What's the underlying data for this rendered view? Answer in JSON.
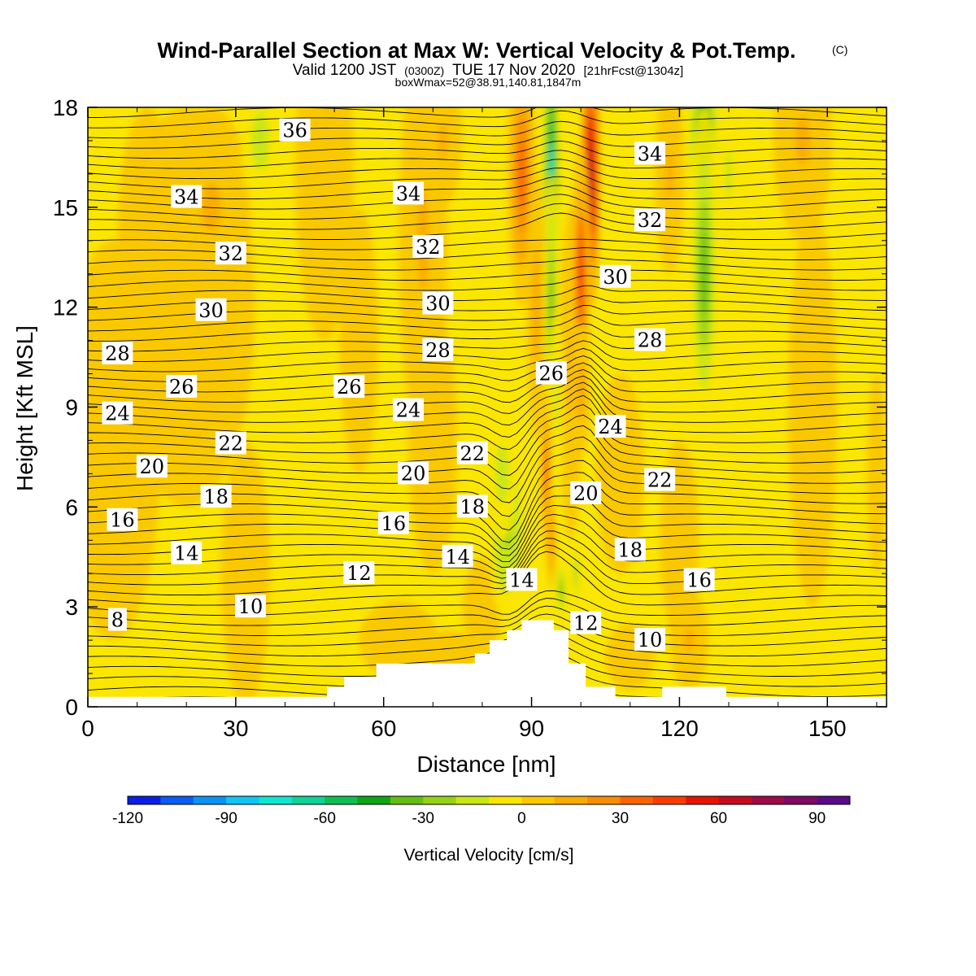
{
  "title": {
    "main": "Wind-Parallel Section at Max W: Vertical Velocity & Pot.Temp.",
    "copyright": "(C)",
    "valid_prefix": "Valid 1200 JST",
    "valid_utc": "(0300Z)",
    "valid_date": "TUE 17 Nov 2020",
    "forecast": "[21hrFcst@1304z]",
    "box_info": "boxWmax=52@38.91,140.81,1847m"
  },
  "chart_data": {
    "type": "heatmap",
    "xlabel": "Distance [nm]",
    "ylabel": "Height [Kft MSL]",
    "xlim": [
      0,
      162
    ],
    "ylim": [
      0,
      18
    ],
    "x_ticks": [
      "0",
      "30",
      "60",
      "90",
      "120",
      "150"
    ],
    "y_ticks": [
      "0",
      "3",
      "6",
      "9",
      "12",
      "15",
      "18"
    ],
    "colorbar": {
      "label": "Vertical Velocity [cm/s]",
      "range": [
        -120,
        100
      ],
      "step": 10,
      "tick_labels": [
        "-120",
        "-90",
        "-60",
        "-30",
        "0",
        "30",
        "60",
        "90"
      ],
      "colors": [
        "#0a1de6",
        "#0a5cf5",
        "#0a93f5",
        "#0fc5f5",
        "#0fe6d2",
        "#0fd296",
        "#0fbe50",
        "#0fa514",
        "#64be14",
        "#96d214",
        "#c8e614",
        "#fae600",
        "#fac800",
        "#faaa00",
        "#fa8c00",
        "#fa6400",
        "#fa3c00",
        "#e61400",
        "#c80a1e",
        "#a00a46",
        "#7d0a64",
        "#5a0a87"
      ]
    },
    "terrain_kft": [
      {
        "x": 0,
        "top": 0.3
      },
      {
        "x": 48.5,
        "top": 0.3
      },
      {
        "x": 48.5,
        "top": 0.6
      },
      {
        "x": 52,
        "top": 0.6
      },
      {
        "x": 52,
        "top": 0.9
      },
      {
        "x": 58.5,
        "top": 0.9
      },
      {
        "x": 58.5,
        "top": 1.3
      },
      {
        "x": 78.5,
        "top": 1.3
      },
      {
        "x": 78.5,
        "top": 1.6
      },
      {
        "x": 81.5,
        "top": 1.6
      },
      {
        "x": 81.5,
        "top": 2.0
      },
      {
        "x": 85,
        "top": 2.0
      },
      {
        "x": 85,
        "top": 2.3
      },
      {
        "x": 88,
        "top": 2.3
      },
      {
        "x": 88,
        "top": 2.6
      },
      {
        "x": 94.5,
        "top": 2.6
      },
      {
        "x": 94.5,
        "top": 2.3
      },
      {
        "x": 97.5,
        "top": 2.3
      },
      {
        "x": 97.5,
        "top": 1.3
      },
      {
        "x": 101,
        "top": 1.3
      },
      {
        "x": 101,
        "top": 0.6
      },
      {
        "x": 107,
        "top": 0.6
      },
      {
        "x": 107,
        "top": 0.3
      },
      {
        "x": 116.5,
        "top": 0.3
      },
      {
        "x": 116.5,
        "top": 0.6
      },
      {
        "x": 129.5,
        "top": 0.6
      },
      {
        "x": 129.5,
        "top": 0.3
      },
      {
        "x": 162,
        "top": 0.3
      }
    ],
    "pot_temp_labels": [
      {
        "text": "36",
        "x": 42,
        "y": 17.3
      },
      {
        "text": "34",
        "x": 20,
        "y": 15.3
      },
      {
        "text": "32",
        "x": 29,
        "y": 13.6
      },
      {
        "text": "30",
        "x": 25,
        "y": 11.9
      },
      {
        "text": "28",
        "x": 6,
        "y": 10.6
      },
      {
        "text": "26",
        "x": 19,
        "y": 9.6
      },
      {
        "text": "24",
        "x": 6,
        "y": 8.8
      },
      {
        "text": "22",
        "x": 29,
        "y": 7.9
      },
      {
        "text": "20",
        "x": 13,
        "y": 7.2
      },
      {
        "text": "18",
        "x": 26,
        "y": 6.3
      },
      {
        "text": "16",
        "x": 7,
        "y": 5.6
      },
      {
        "text": "14",
        "x": 20,
        "y": 4.6
      },
      {
        "text": "10",
        "x": 33,
        "y": 3.0
      },
      {
        "text": "8",
        "x": 6,
        "y": 2.6
      },
      {
        "text": "34",
        "x": 65,
        "y": 15.4
      },
      {
        "text": "32",
        "x": 69,
        "y": 13.8
      },
      {
        "text": "30",
        "x": 71,
        "y": 12.1
      },
      {
        "text": "28",
        "x": 71,
        "y": 10.7
      },
      {
        "text": "26",
        "x": 53,
        "y": 9.6
      },
      {
        "text": "24",
        "x": 65,
        "y": 8.9
      },
      {
        "text": "22",
        "x": 78,
        "y": 7.6
      },
      {
        "text": "20",
        "x": 66,
        "y": 7.0
      },
      {
        "text": "18",
        "x": 78,
        "y": 6.0
      },
      {
        "text": "16",
        "x": 62,
        "y": 5.5
      },
      {
        "text": "14",
        "x": 75,
        "y": 4.5
      },
      {
        "text": "12",
        "x": 55,
        "y": 4.0
      },
      {
        "text": "14",
        "x": 88,
        "y": 3.8
      },
      {
        "text": "26",
        "x": 94,
        "y": 10.0
      },
      {
        "text": "24",
        "x": 106,
        "y": 8.4
      },
      {
        "text": "20",
        "x": 101,
        "y": 6.4
      },
      {
        "text": "34",
        "x": 114,
        "y": 16.6
      },
      {
        "text": "32",
        "x": 114,
        "y": 14.6
      },
      {
        "text": "30",
        "x": 107,
        "y": 12.9
      },
      {
        "text": "28",
        "x": 114,
        "y": 11.0
      },
      {
        "text": "22",
        "x": 116,
        "y": 6.8
      },
      {
        "text": "18",
        "x": 110,
        "y": 4.7
      },
      {
        "text": "16",
        "x": 124,
        "y": 3.8
      },
      {
        "text": "12",
        "x": 101,
        "y": 2.5
      },
      {
        "text": "10",
        "x": 114,
        "y": 2.0
      }
    ]
  }
}
